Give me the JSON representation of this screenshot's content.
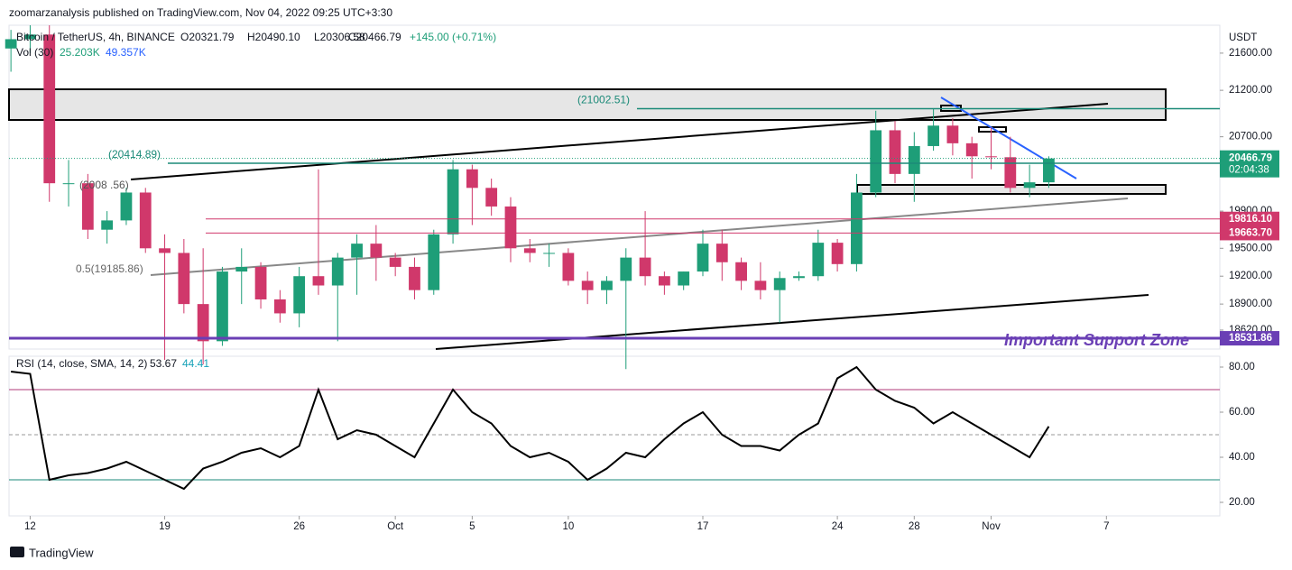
{
  "header": {
    "publisher": "zoomarzanalysis published on TradingView.com, Nov 04, 2022 09:25 UTC+3:30",
    "symbol": "Bitcoin / TetherUS, 4h, BINANCE",
    "open": "O20321.79",
    "high": "H20490.10",
    "low": "L20306.58",
    "close": "C20466.79",
    "change": "+145.00 (+0.71%)",
    "volume_label": "Vol (30)",
    "volume": "25.203K",
    "volume_ma": "49.357K",
    "currency": "USDT",
    "brand": "TradingView"
  },
  "chart_data": [
    {
      "type": "candlestick",
      "up_color": "#1e9e78",
      "down_color": "#d0386b",
      "categories": [
        null,
        null,
        null,
        null,
        null,
        null,
        null,
        null,
        null,
        null,
        null,
        null,
        null,
        null,
        null,
        null,
        null,
        null,
        null,
        null,
        null,
        null,
        null,
        null,
        null,
        null,
        null,
        null,
        null,
        null,
        null,
        null,
        null,
        null,
        null,
        null,
        null,
        null,
        null,
        null,
        null,
        null,
        null,
        null,
        null,
        null,
        null,
        null,
        null,
        null,
        null,
        null,
        null,
        null,
        null
      ],
      "candles": [
        {
          "o": 21650,
          "h": 21850,
          "l": 21400,
          "c": 21750
        },
        {
          "o": 21750,
          "h": 21900,
          "l": 21600,
          "c": 21800
        },
        {
          "o": 21800,
          "h": 21900,
          "l": 20000,
          "c": 20200
        },
        {
          "o": 20200,
          "h": 20450,
          "l": 19950,
          "c": 20200
        },
        {
          "o": 20200,
          "h": 20300,
          "l": 19600,
          "c": 19700
        },
        {
          "o": 19700,
          "h": 19900,
          "l": 19550,
          "c": 19800
        },
        {
          "o": 19800,
          "h": 20150,
          "l": 19750,
          "c": 20100
        },
        {
          "o": 20100,
          "h": 20150,
          "l": 19450,
          "c": 19500
        },
        {
          "o": 19500,
          "h": 19650,
          "l": 18300,
          "c": 19450
        },
        {
          "o": 19450,
          "h": 19600,
          "l": 18800,
          "c": 18900
        },
        {
          "o": 18900,
          "h": 19500,
          "l": 18250,
          "c": 18500
        },
        {
          "o": 18500,
          "h": 19300,
          "l": 18450,
          "c": 19250
        },
        {
          "o": 19250,
          "h": 19500,
          "l": 18900,
          "c": 19300
        },
        {
          "o": 19300,
          "h": 19350,
          "l": 18850,
          "c": 18950
        },
        {
          "o": 18950,
          "h": 19050,
          "l": 18700,
          "c": 18800
        },
        {
          "o": 18800,
          "h": 19300,
          "l": 18650,
          "c": 19200
        },
        {
          "o": 19200,
          "h": 20350,
          "l": 19000,
          "c": 19100
        },
        {
          "o": 19100,
          "h": 19450,
          "l": 18500,
          "c": 19400
        },
        {
          "o": 19400,
          "h": 19650,
          "l": 19000,
          "c": 19550
        },
        {
          "o": 19550,
          "h": 19750,
          "l": 19150,
          "c": 19400
        },
        {
          "o": 19400,
          "h": 19450,
          "l": 19200,
          "c": 19300
        },
        {
          "o": 19300,
          "h": 19400,
          "l": 18950,
          "c": 19050
        },
        {
          "o": 19050,
          "h": 19700,
          "l": 19000,
          "c": 19650
        },
        {
          "o": 19650,
          "h": 20450,
          "l": 19550,
          "c": 20350
        },
        {
          "o": 20350,
          "h": 20400,
          "l": 19750,
          "c": 20150
        },
        {
          "o": 20150,
          "h": 20250,
          "l": 19850,
          "c": 19950
        },
        {
          "o": 19950,
          "h": 20050,
          "l": 19350,
          "c": 19500
        },
        {
          "o": 19500,
          "h": 19600,
          "l": 19350,
          "c": 19450
        },
        {
          "o": 19450,
          "h": 19550,
          "l": 19300,
          "c": 19450
        },
        {
          "o": 19450,
          "h": 19500,
          "l": 19100,
          "c": 19150
        },
        {
          "o": 19150,
          "h": 19250,
          "l": 18900,
          "c": 19050
        },
        {
          "o": 19050,
          "h": 19200,
          "l": 18900,
          "c": 19150
        },
        {
          "o": 19150,
          "h": 19500,
          "l": 18200,
          "c": 19400
        },
        {
          "o": 19400,
          "h": 19900,
          "l": 19100,
          "c": 19200
        },
        {
          "o": 19200,
          "h": 19250,
          "l": 19000,
          "c": 19100
        },
        {
          "o": 19100,
          "h": 19250,
          "l": 19050,
          "c": 19250
        },
        {
          "o": 19250,
          "h": 19700,
          "l": 19200,
          "c": 19550
        },
        {
          "o": 19550,
          "h": 19700,
          "l": 19150,
          "c": 19350
        },
        {
          "o": 19350,
          "h": 19400,
          "l": 19050,
          "c": 19150
        },
        {
          "o": 19150,
          "h": 19350,
          "l": 18950,
          "c": 19050
        },
        {
          "o": 19050,
          "h": 19250,
          "l": 18700,
          "c": 19180
        },
        {
          "o": 19180,
          "h": 19250,
          "l": 19150,
          "c": 19200
        },
        {
          "o": 19200,
          "h": 19700,
          "l": 19150,
          "c": 19560
        },
        {
          "o": 19560,
          "h": 19600,
          "l": 19250,
          "c": 19330
        },
        {
          "o": 19330,
          "h": 20300,
          "l": 19250,
          "c": 20100
        },
        {
          "o": 20100,
          "h": 20980,
          "l": 20050,
          "c": 20770
        },
        {
          "o": 20770,
          "h": 20870,
          "l": 20200,
          "c": 20300
        },
        {
          "o": 20300,
          "h": 20750,
          "l": 20000,
          "c": 20600
        },
        {
          "o": 20600,
          "h": 21000,
          "l": 20550,
          "c": 20820
        },
        {
          "o": 20820,
          "h": 20900,
          "l": 20500,
          "c": 20630
        },
        {
          "o": 20630,
          "h": 20700,
          "l": 20250,
          "c": 20490
        },
        {
          "o": 20490,
          "h": 20800,
          "l": 20350,
          "c": 20480
        },
        {
          "o": 20480,
          "h": 20700,
          "l": 20100,
          "c": 20150
        },
        {
          "o": 20150,
          "h": 20400,
          "l": 20050,
          "c": 20210
        },
        {
          "o": 20210,
          "h": 20490,
          "l": 20150,
          "c": 20466.79
        }
      ],
      "xlim": [
        -0.1,
        62.9
      ],
      "xticks": [
        {
          "value": 1,
          "label": "12"
        },
        {
          "value": 8,
          "label": "19"
        },
        {
          "value": 15,
          "label": "26"
        },
        {
          "value": 20,
          "label": "Oct"
        },
        {
          "value": 24,
          "label": "5"
        },
        {
          "value": 29,
          "label": "10"
        },
        {
          "value": 36,
          "label": "17"
        },
        {
          "value": 43,
          "label": "24"
        },
        {
          "value": 47,
          "label": "28"
        },
        {
          "value": 51,
          "label": "Nov"
        },
        {
          "value": 57,
          "label": "7"
        }
      ],
      "ylim": [
        18416,
        21900
      ],
      "yticks": [
        {
          "value": 21600,
          "label": "21600.00"
        },
        {
          "value": 21200,
          "label": "21200.00"
        },
        {
          "value": 20700,
          "label": "20700.00"
        },
        {
          "value": 19900,
          "label": "19900.00"
        },
        {
          "value": 19500,
          "label": "19500.00"
        },
        {
          "value": 19200,
          "label": "19200.00"
        },
        {
          "value": 18900,
          "label": "18900.00"
        },
        {
          "value": 18620,
          "label": "18620.00"
        }
      ],
      "levels": [
        {
          "value": 21002.51,
          "label": "(21002.51)",
          "color": "#1b8a78"
        },
        {
          "value": 20414.89,
          "label": "(20414.89)",
          "color": "#1b8a78"
        },
        {
          "value": 20086.56,
          "label": "(2008 .56)",
          "color": "#555"
        },
        {
          "value": 19185.86,
          "label": "0.5(19185.86)",
          "color": "#666"
        }
      ],
      "price_tags": [
        {
          "value": 19816.1,
          "label": "19816.10",
          "color": "#d0386b"
        },
        {
          "value": 19663.7,
          "label": "19663.70",
          "color": "#d0386b"
        },
        {
          "value": 18531.86,
          "label": "18531.86",
          "color": "#6a3fb5"
        }
      ],
      "last_price": {
        "value": 20466.79,
        "label": "20466.79",
        "timer": "02:04:38",
        "color": "#1e9e78"
      },
      "annotation": "Important Support Zone"
    },
    {
      "type": "line",
      "title": "RSI (14, close, SMA, 14, 2)",
      "last": "53.67",
      "sma": "44.41",
      "color": "#000000",
      "values": [
        78,
        77,
        30,
        32,
        33,
        35,
        38,
        34,
        30,
        26,
        35,
        38,
        42,
        44,
        40,
        45,
        70,
        48,
        52,
        50,
        45,
        40,
        55,
        70,
        60,
        55,
        45,
        40,
        42,
        38,
        30,
        35,
        42,
        40,
        48,
        55,
        60,
        50,
        45,
        45,
        43,
        50,
        55,
        75,
        80,
        70,
        65,
        62,
        55,
        60,
        55,
        50,
        45,
        40,
        53.67
      ],
      "ylim": [
        14,
        84.8
      ],
      "yticks": [
        {
          "value": 80,
          "label": "80.00"
        },
        {
          "value": 60,
          "label": "60.00"
        },
        {
          "value": 40,
          "label": "40.00"
        },
        {
          "value": 20,
          "label": "20.00"
        }
      ],
      "bands": [
        {
          "value": 70,
          "color": "#b03a7a"
        },
        {
          "value": 50,
          "color": "#999"
        },
        {
          "value": 30,
          "color": "#1b8a78"
        }
      ]
    }
  ]
}
